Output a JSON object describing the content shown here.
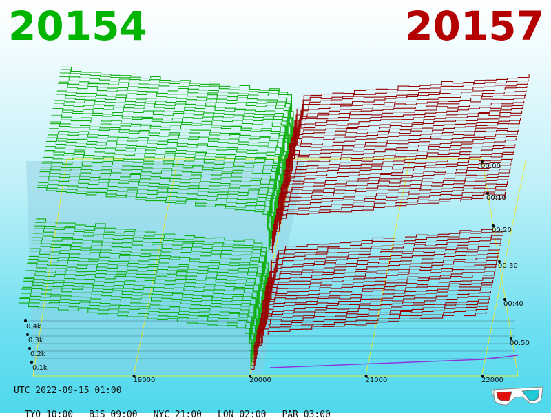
{
  "prices": {
    "bid": "20154",
    "ask": "20157"
  },
  "colors": {
    "bid": "#00b400",
    "ask": "#b40000",
    "bid_line": "#10b010",
    "ask_line": "#9a0000",
    "grid": "#e8e83a",
    "base": "#9030e0"
  },
  "info": {
    "utc": "UTC 2022-09-15 01:00",
    "timezones": [
      "TYO 10:00",
      "BJS 09:00",
      "NYC 21:00",
      "LON 02:00",
      "PAR 03:00"
    ]
  },
  "icons": {
    "glasses": "3d-glasses-icon"
  },
  "chart_data": {
    "type": "area",
    "subtype": "3d-depth-history",
    "x_ticks": [
      "19000",
      "20000",
      "21000",
      "22000"
    ],
    "y_ticks": [
      "0.1k",
      "0.2k",
      "0.3k",
      "0.4k"
    ],
    "z_ticks": [
      "00:00",
      "00:10",
      "00:20",
      "00:30",
      "00:40",
      "00:50"
    ],
    "xlim": [
      18000,
      22300
    ],
    "ylim": [
      0,
      500
    ],
    "zlim": [
      0,
      60
    ],
    "grid": true,
    "series": [
      {
        "x": [
          18000,
          19000,
          19500,
          19900,
          20000
        ],
        "y": [
          480,
          430,
          380,
          300,
          0
        ]
      },
      {
        "x": [
          20000,
          20100,
          20500,
          21000,
          22000
        ],
        "y": [
          0,
          280,
          320,
          360,
          420
        ]
      }
    ]
  }
}
